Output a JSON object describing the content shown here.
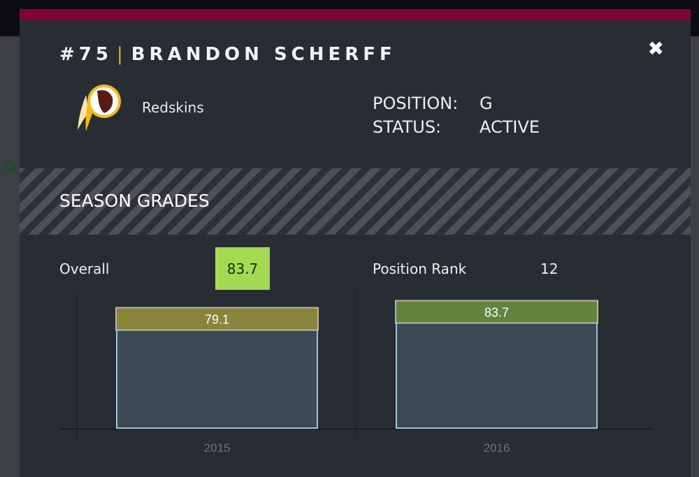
{
  "player": {
    "number": "#75",
    "name": "BRANDON SCHERFF",
    "team": "Redskins",
    "position_label": "POSITION:",
    "position": "G",
    "status_label": "STATUS:",
    "status": "ACTIVE"
  },
  "close_icon": "close-x-icon",
  "colors": {
    "team_primary": "#7f0631",
    "accent": "#e8b51a",
    "grade_high": "#a3d953"
  },
  "section_title": "SEASON GRADES",
  "summary": {
    "overall_label": "Overall",
    "overall_value": "83.7",
    "rank_label": "Position Rank",
    "rank_value": "12"
  },
  "chart_data": {
    "type": "bar",
    "categories": [
      "2015",
      "2016"
    ],
    "values": [
      79.1,
      83.7
    ],
    "labels": [
      "79.1",
      "83.7"
    ],
    "label_colors": [
      "#8a843c",
      "#62843f"
    ],
    "ylim": [
      0,
      100
    ]
  }
}
